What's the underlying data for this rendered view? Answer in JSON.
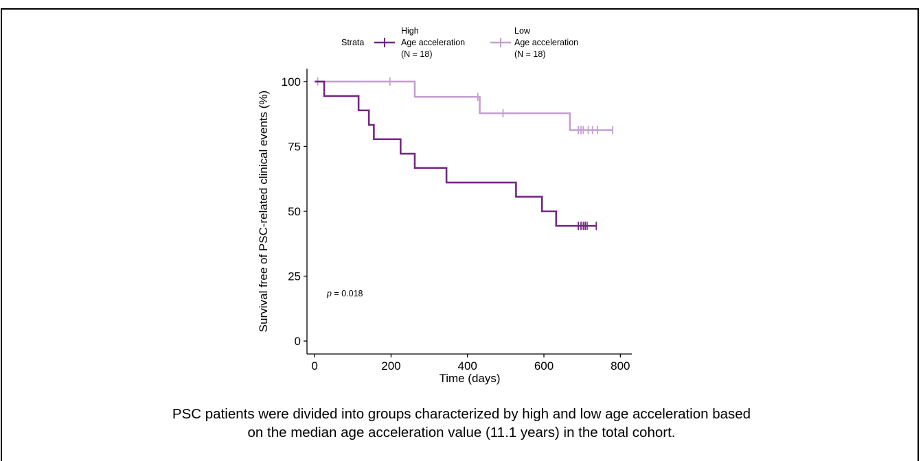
{
  "caption": {
    "line1": "PSC patients were divided into groups characterized by high and low age acceleration based",
    "line2": "on the median age acceleration value (11.1 years) in the total cohort."
  },
  "legend": {
    "title": "Strata",
    "entries": [
      {
        "line1": "High",
        "line2": "Age acceleration",
        "line3": "(N = 18)"
      },
      {
        "line1": "Low",
        "line2": "Age acceleration",
        "line3": "(N = 18)"
      }
    ]
  },
  "annotation": {
    "p_symbol": "p",
    "p_text": " = 0.018"
  },
  "chart_data": {
    "type": "line",
    "subtype": "kaplan-meier-step",
    "xlabel": "Time (days)",
    "ylabel": "Survival free of PSC-related clinical events (%)",
    "xlim": [
      -20,
      830
    ],
    "ylim": [
      -5,
      105
    ],
    "xticks": [
      0,
      200,
      400,
      600,
      800
    ],
    "yticks": [
      0,
      25,
      50,
      75,
      100
    ],
    "grid": false,
    "legend_position": "top",
    "series": [
      {
        "name": "High",
        "color": "#722882",
        "steps": [
          [
            0,
            100
          ],
          [
            25,
            94.4
          ],
          [
            115,
            88.9
          ],
          [
            142,
            83.3
          ],
          [
            155,
            77.8
          ],
          [
            225,
            72.2
          ],
          [
            262,
            66.7
          ],
          [
            345,
            61.1
          ],
          [
            527,
            55.6
          ],
          [
            595,
            50.0
          ],
          [
            632,
            44.4
          ],
          [
            737,
            44.4
          ]
        ],
        "censored": [
          [
            690,
            44.4
          ],
          [
            697,
            44.4
          ],
          [
            703,
            44.4
          ],
          [
            708,
            44.4
          ],
          [
            713,
            44.4
          ],
          [
            737,
            44.4
          ]
        ]
      },
      {
        "name": "Low",
        "color": "#c4a0d0",
        "steps": [
          [
            0,
            100
          ],
          [
            262,
            94.1
          ],
          [
            432,
            87.8
          ],
          [
            668,
            81.3
          ],
          [
            780,
            81.3
          ]
        ],
        "censored": [
          [
            8,
            100
          ],
          [
            197,
            100
          ],
          [
            427,
            94.1
          ],
          [
            493,
            87.8
          ],
          [
            690,
            81.3
          ],
          [
            697,
            81.3
          ],
          [
            703,
            81.3
          ],
          [
            716,
            81.3
          ],
          [
            727,
            81.3
          ],
          [
            740,
            81.3
          ],
          [
            780,
            81.3
          ]
        ]
      }
    ]
  }
}
